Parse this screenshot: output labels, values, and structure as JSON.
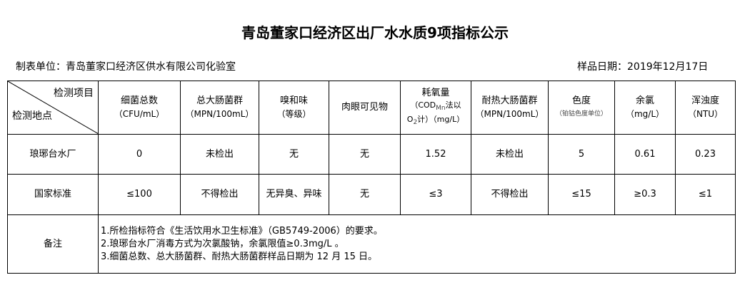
{
  "title": "青岛董家口经济区出厂水水质9项指标公示",
  "unit": "制表单位：青岛董家口经济区供水有限公司化验室",
  "date": "样品日期：2019年12月17日",
  "corner": {
    "top": "检测项目",
    "bottom": "检测地点"
  },
  "headers": [
    {
      "name": "细菌总数",
      "unit": "（CFU/mL）"
    },
    {
      "name": "总大肠菌群",
      "unit": "（MPN/100mL）"
    },
    {
      "name": "嗅和味",
      "unit": "（等级）"
    },
    {
      "name": "肉眼可见物",
      "unit": ""
    },
    {
      "name": "耗氧量",
      "unit_a": "（COD",
      "unit_sub": "Mn",
      "unit_b": "法以",
      "unit_c": "O",
      "unit_c_sub": "2",
      "unit_d": "计）（mg/L）"
    },
    {
      "name": "耐热大肠菌群",
      "unit": "（MPN/100mL）"
    },
    {
      "name": "色度",
      "unit": "（铂钴色度单位）"
    },
    {
      "name": "余氯",
      "unit": "（mg/L）"
    },
    {
      "name": "浑浊度",
      "unit": "（NTU）"
    }
  ],
  "rows": [
    {
      "label": "琅琊台水厂",
      "values": [
        "0",
        "未检出",
        "无",
        "无",
        "1.52",
        "未检出",
        "5",
        "0.61",
        "0.23"
      ]
    },
    {
      "label": "国家标准",
      "values": [
        "≤100",
        "不得检出",
        "无异臭、异味",
        "无",
        "≤3",
        "不得检出",
        "≤15",
        "≥0.3",
        "≤1"
      ]
    }
  ],
  "remarks": {
    "label": "备注",
    "lines": [
      "1.所检指标符合《生活饮用水卫生标准》（GB5749-2006）的要求。",
      "2.琅琊台水厂消毒方式为次氯酸钠，余氯限值≥0.3mg/L 。",
      "3.细菌总数、总大肠菌群、耐热大肠菌群样品日期为 12 月 15 日。"
    ]
  }
}
